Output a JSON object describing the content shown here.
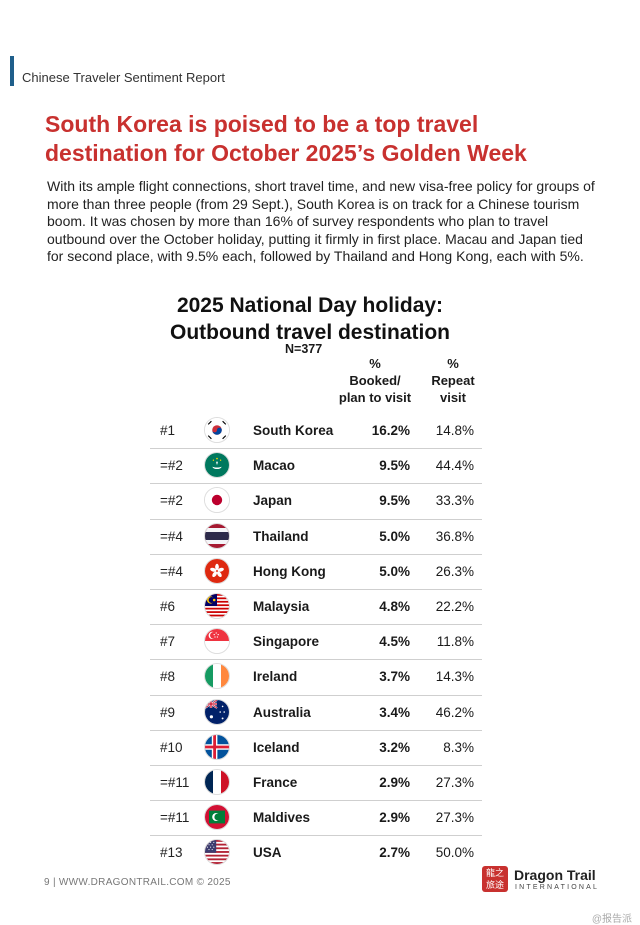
{
  "header": {
    "report_title": "Chinese Traveler Sentiment Report"
  },
  "headline": "South Korea is poised to be a top travel destination for October 2025’s Golden Week",
  "intro": "With its ample flight connections, short travel time, and new visa-free policy for groups of more than three people (from 29 Sept.), South Korea is on track for a Chinese tourism boom. It was chosen by more than 16% of survey respondents who plan to travel outbound over the October holiday, putting it firmly in first place. Macau and Japan tied for second place, with 9.5% each, followed by Thailand and Hong Kong, each with 5%.",
  "table": {
    "title_line1": "2025 National Day holiday:",
    "title_line2": "Outbound travel destination",
    "n": "N=377",
    "col_booked": [
      "%",
      "Booked/",
      "plan to visit"
    ],
    "col_repeat": [
      "%",
      "Repeat",
      "visit"
    ],
    "rows": [
      {
        "rank": "#1",
        "country": "South Korea",
        "booked": "16.2%",
        "repeat": "14.8%",
        "flag": "kr"
      },
      {
        "rank": "=#2",
        "country": "Macao",
        "booked": "9.5%",
        "repeat": "44.4%",
        "flag": "mo"
      },
      {
        "rank": "=#2",
        "country": "Japan",
        "booked": "9.5%",
        "repeat": "33.3%",
        "flag": "jp"
      },
      {
        "rank": "=#4",
        "country": "Thailand",
        "booked": "5.0%",
        "repeat": "36.8%",
        "flag": "th"
      },
      {
        "rank": "=#4",
        "country": "Hong Kong",
        "booked": "5.0%",
        "repeat": "26.3%",
        "flag": "hk"
      },
      {
        "rank": "#6",
        "country": "Malaysia",
        "booked": "4.8%",
        "repeat": "22.2%",
        "flag": "my"
      },
      {
        "rank": "#7",
        "country": "Singapore",
        "booked": "4.5%",
        "repeat": "11.8%",
        "flag": "sg"
      },
      {
        "rank": "#8",
        "country": "Ireland",
        "booked": "3.7%",
        "repeat": "14.3%",
        "flag": "ie"
      },
      {
        "rank": "#9",
        "country": "Australia",
        "booked": "3.4%",
        "repeat": "46.2%",
        "flag": "au"
      },
      {
        "rank": "#10",
        "country": "Iceland",
        "booked": "3.2%",
        "repeat": "8.3%",
        "flag": "is"
      },
      {
        "rank": "=#11",
        "country": "France",
        "booked": "2.9%",
        "repeat": "27.3%",
        "flag": "fr"
      },
      {
        "rank": "=#11",
        "country": "Maldives",
        "booked": "2.9%",
        "repeat": "27.3%",
        "flag": "mv"
      },
      {
        "rank": "#13",
        "country": "USA",
        "booked": "2.7%",
        "repeat": "50.0%",
        "flag": "us"
      }
    ]
  },
  "footer": "9  |  WWW.DRAGONTRAIL.COM ©  2025",
  "logo": {
    "mark": "龍之 旅途",
    "name": "Dragon Trail",
    "sub": "INTERNATIONAL"
  },
  "watermark": "@报告派",
  "colors": {
    "headline": "#c8312f",
    "accent_bar": "#1f5f8b"
  }
}
